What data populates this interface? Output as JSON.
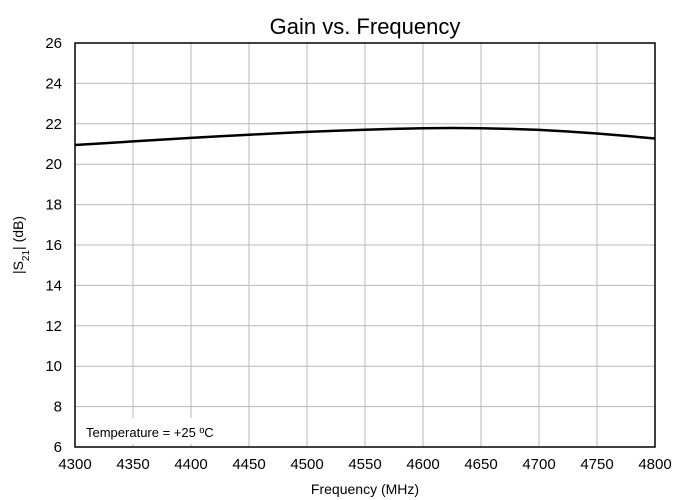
{
  "chart_data": {
    "type": "line",
    "title": "Gain vs. Frequency",
    "xlabel": "Frequency (MHz)",
    "ylabel": {
      "prefix": "|S",
      "subscript": "21",
      "suffix": "| (dB)"
    },
    "xlim": [
      4300,
      4800
    ],
    "ylim": [
      6,
      26
    ],
    "x_ticks": [
      4300,
      4350,
      4400,
      4450,
      4500,
      4550,
      4600,
      4650,
      4700,
      4750,
      4800
    ],
    "y_ticks": [
      6,
      8,
      10,
      12,
      14,
      16,
      18,
      20,
      22,
      24,
      26
    ],
    "grid": true,
    "legend": "none",
    "annotation": "Temperature = +25 ºC",
    "series": [
      {
        "color": "#000000",
        "x": [
          4300,
          4325,
          4350,
          4375,
          4400,
          4425,
          4450,
          4475,
          4500,
          4525,
          4550,
          4575,
          4600,
          4625,
          4650,
          4675,
          4700,
          4725,
          4750,
          4775,
          4800
        ],
        "y": [
          20.95,
          21.04,
          21.13,
          21.22,
          21.3,
          21.38,
          21.46,
          21.53,
          21.6,
          21.66,
          21.71,
          21.75,
          21.78,
          21.79,
          21.78,
          21.75,
          21.7,
          21.62,
          21.52,
          21.4,
          21.27
        ]
      }
    ]
  }
}
